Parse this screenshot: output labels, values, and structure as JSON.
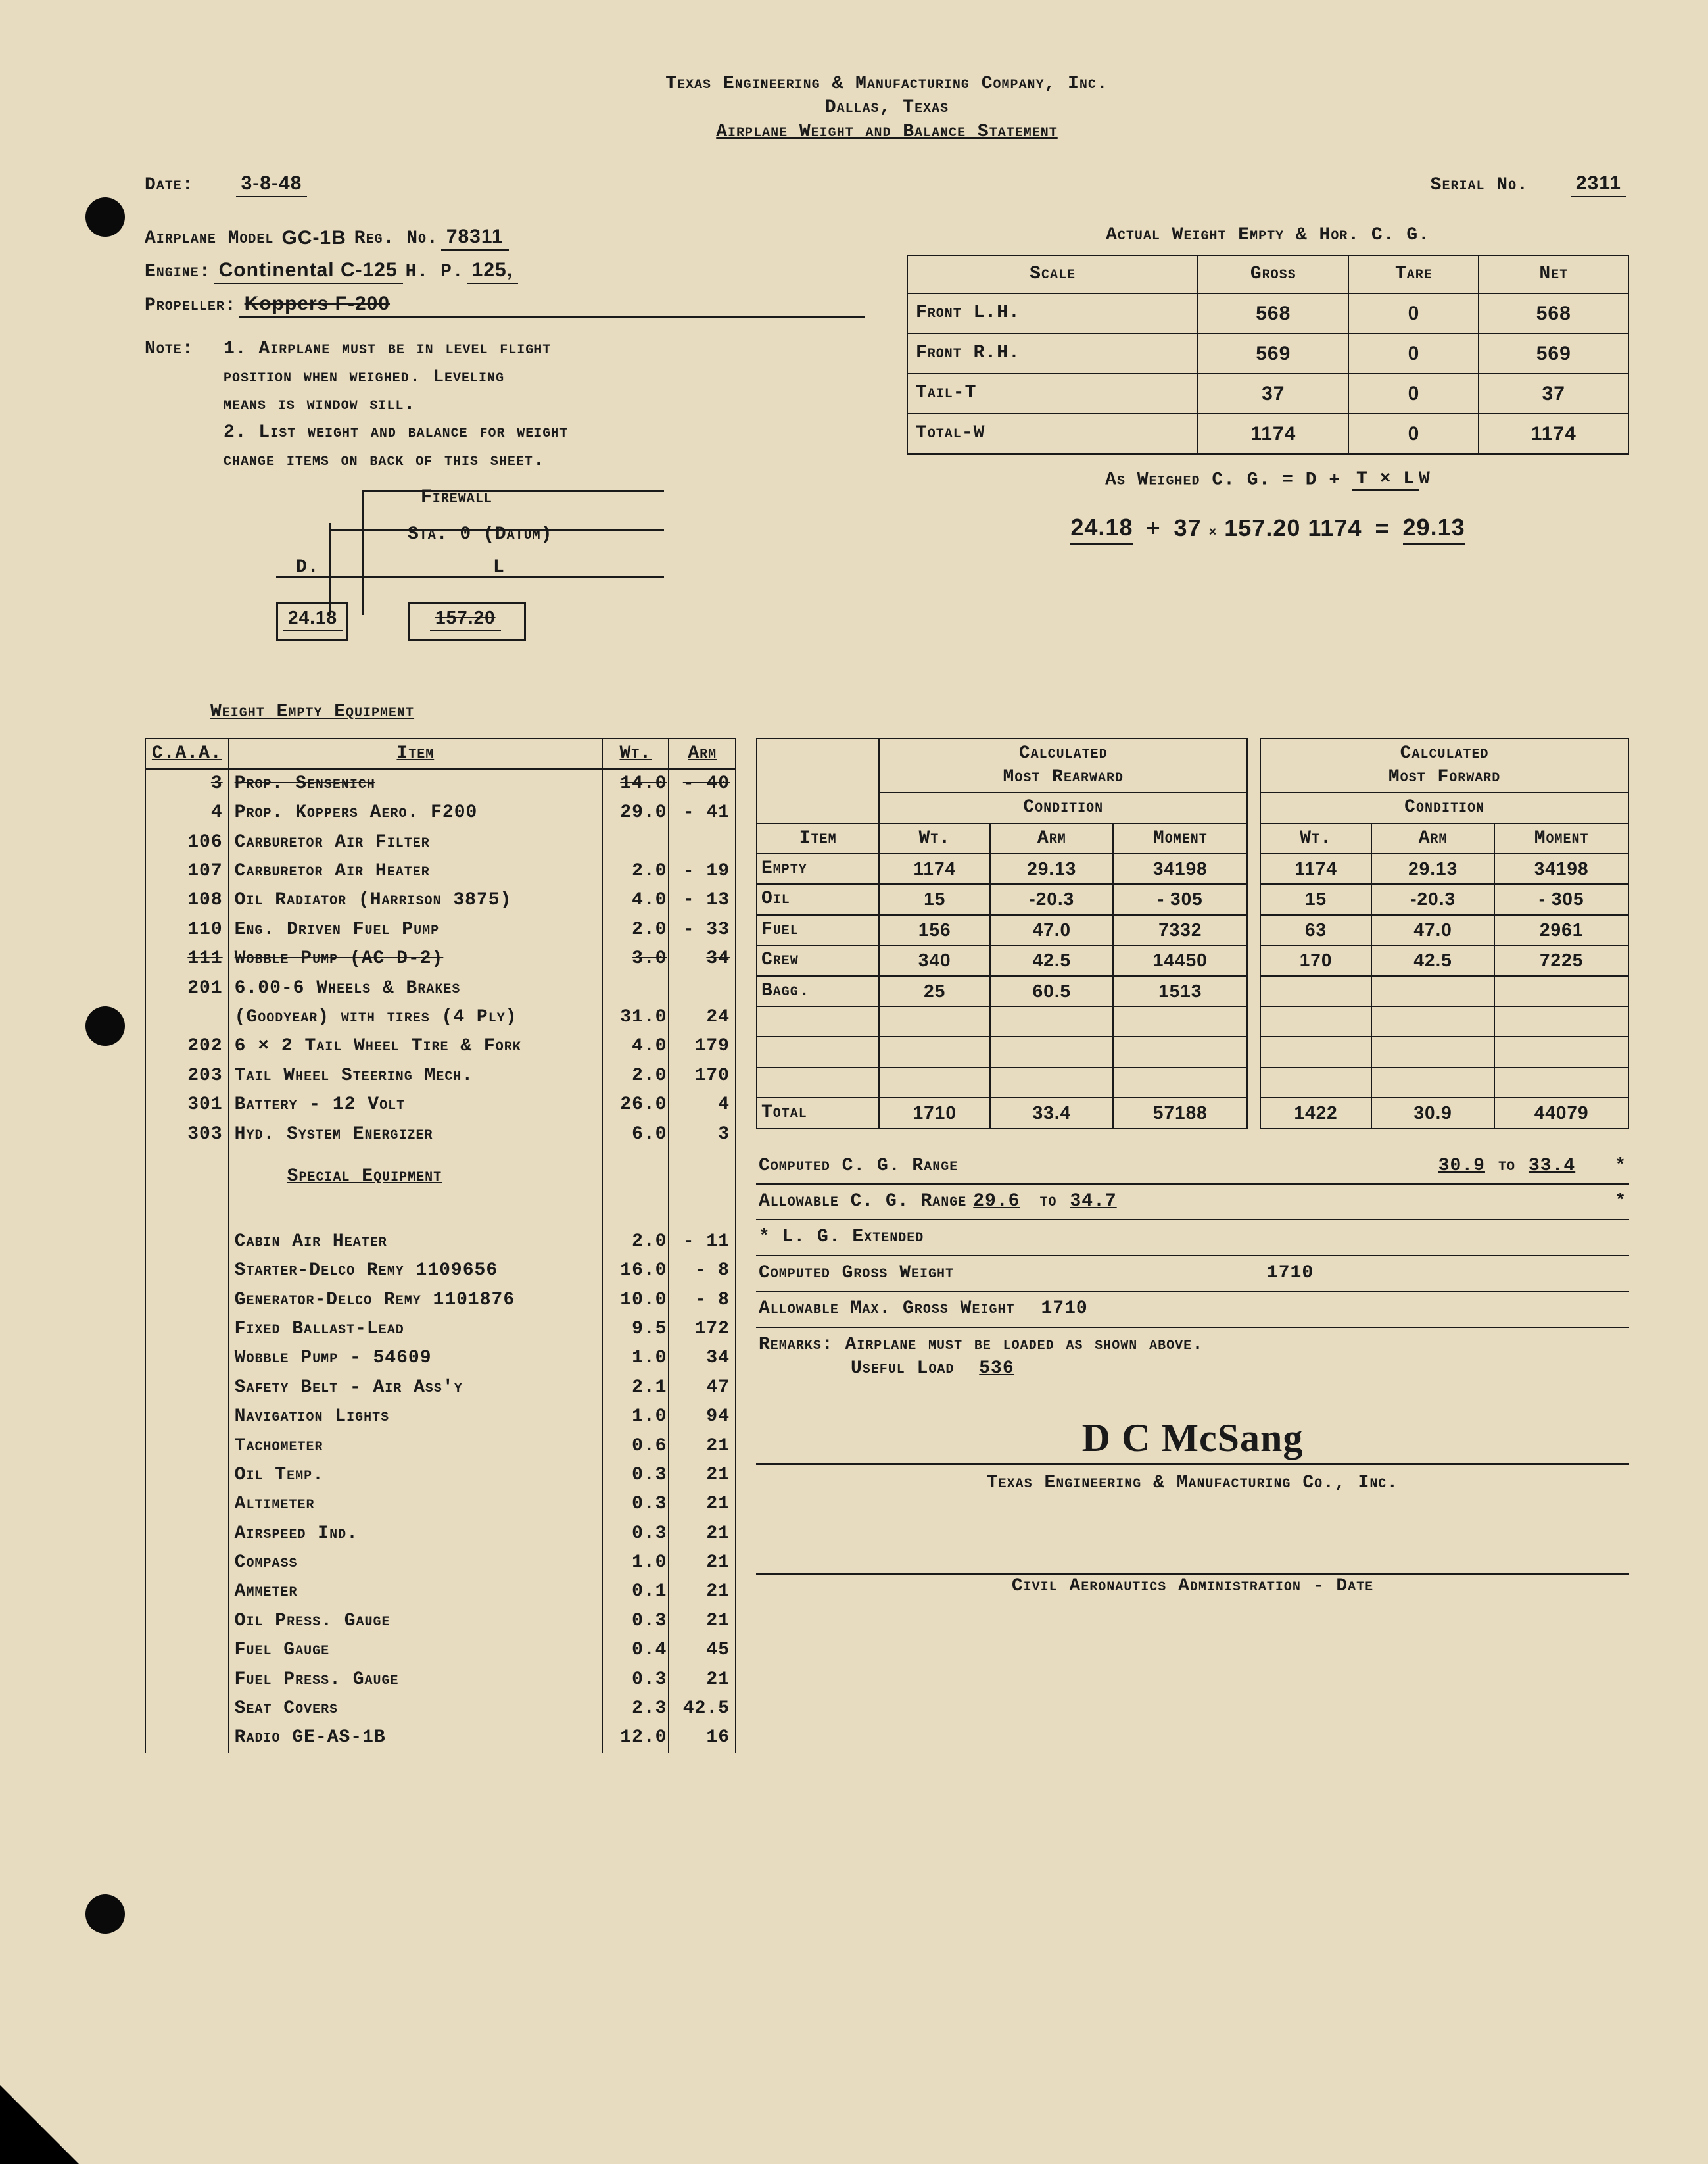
{
  "header": {
    "company": "Texas Engineering & Manufacturing Company, Inc.",
    "city": "Dallas, Texas",
    "title": "Airplane Weight and Balance Statement"
  },
  "meta": {
    "date_label": "Date:",
    "date": "3-8-48",
    "serial_label": "Serial No.",
    "serial": "2311",
    "model_label": "Airplane Model",
    "model": "GC-1B",
    "reg_label": "Reg. No.",
    "reg": "78311",
    "engine_label": "Engine:",
    "engine": "Continental C-125",
    "hp_label": "H. P.",
    "hp": "125,",
    "prop_label": "Propeller:",
    "prop_strike": "Koppers F-200"
  },
  "notes": {
    "label": "Note:",
    "n1a": "1. Airplane must be in level flight",
    "n1b": "position when weighed. Leveling",
    "n1c": "means is window sill.",
    "n2a": "2. List weight and balance for weight",
    "n2b": "change items on back of this sheet."
  },
  "diagram": {
    "firewall": "Firewall",
    "datum": "Sta. 0 (Datum)",
    "d_label": "D.",
    "d_val": "24.18",
    "l_label": "L",
    "l_val": "157.20"
  },
  "actual_weight": {
    "title": "Actual Weight Empty & Hor. C. G.",
    "cols": [
      "Scale",
      "Gross",
      "Tare",
      "Net"
    ],
    "rows": [
      {
        "label": "Front L.H.",
        "gross": "568",
        "tare": "0",
        "net": "568"
      },
      {
        "label": "Front R.H.",
        "gross": "569",
        "tare": "0",
        "net": "569"
      },
      {
        "label": "Tail-T",
        "gross": "37",
        "tare": "0",
        "net": "37"
      },
      {
        "label": "Total-W",
        "gross": "1174",
        "tare": "0",
        "net": "1174"
      }
    ],
    "formula_label": "As Weighed C. G. = D +",
    "formula_top": "T × L",
    "formula_bot": "W",
    "calc_d": "24.18",
    "calc_t": "37",
    "calc_l": "157.20",
    "calc_w": "1174",
    "calc_result": "29.13"
  },
  "equip": {
    "header": "Weight Empty Equipment",
    "cols": {
      "caa": "C.A.A.",
      "item": "Item",
      "wt": "Wt.",
      "arm": "Arm"
    },
    "rows": [
      {
        "caa": "3",
        "item": "Prop. Sensenich",
        "wt": "14.0",
        "arm": "- 40",
        "strike": true
      },
      {
        "caa": "4",
        "item": "Prop. Koppers Aero. F200",
        "wt": "29.0",
        "arm": "- 41"
      },
      {
        "caa": "106",
        "item": "Carburetor Air Filter",
        "wt": "",
        "arm": ""
      },
      {
        "caa": "107",
        "item": "Carburetor Air Heater",
        "wt": "2.0",
        "arm": "- 19"
      },
      {
        "caa": "108",
        "item": "Oil Radiator (Harrison 3875)",
        "wt": "4.0",
        "arm": "- 13"
      },
      {
        "caa": "110",
        "item": "Eng. Driven Fuel Pump",
        "wt": "2.0",
        "arm": "- 33"
      },
      {
        "caa": "111",
        "item": "Wobble Pump (AC D-2)",
        "wt": "3.0",
        "arm": "34",
        "strike": true
      },
      {
        "caa": "201",
        "item": "6.00-6 Wheels & Brakes",
        "wt": "",
        "arm": ""
      },
      {
        "caa": "",
        "item": "(Goodyear) with tires (4 Ply)",
        "wt": "31.0",
        "arm": "24"
      },
      {
        "caa": "202",
        "item": "6 × 2 Tail Wheel Tire & Fork",
        "wt": "4.0",
        "arm": "179"
      },
      {
        "caa": "203",
        "item": "Tail Wheel Steering Mech.",
        "wt": "2.0",
        "arm": "170"
      },
      {
        "caa": "301",
        "item": "Battery - 12 Volt",
        "wt": "26.0",
        "arm": "4"
      },
      {
        "caa": "303",
        "item": "Hyd. System Energizer",
        "wt": "6.0",
        "arm": "3"
      }
    ],
    "special_header": "Special Equipment",
    "special": [
      {
        "item": "Cabin Air Heater",
        "wt": "2.0",
        "arm": "- 11"
      },
      {
        "item": "Starter-Delco Remy 1109656",
        "wt": "16.0",
        "arm": "- 8"
      },
      {
        "item": "Generator-Delco Remy 1101876",
        "wt": "10.0",
        "arm": "- 8"
      },
      {
        "item": "Fixed Ballast-Lead",
        "wt": "9.5",
        "arm": "172"
      },
      {
        "item": "Wobble Pump - 54609",
        "wt": "1.0",
        "arm": "34"
      },
      {
        "item": "Safety Belt - Air Ass'y",
        "wt": "2.1",
        "arm": "47"
      },
      {
        "item": "Navigation Lights",
        "wt": "1.0",
        "arm": "94"
      },
      {
        "item": "Tachometer",
        "wt": "0.6",
        "arm": "21"
      },
      {
        "item": "Oil Temp.",
        "wt": "0.3",
        "arm": "21"
      },
      {
        "item": "Altimeter",
        "wt": "0.3",
        "arm": "21"
      },
      {
        "item": "Airspeed Ind.",
        "wt": "0.3",
        "arm": "21"
      },
      {
        "item": "Compass",
        "wt": "1.0",
        "arm": "21"
      },
      {
        "item": "Ammeter",
        "wt": "0.1",
        "arm": "21"
      },
      {
        "item": "Oil Press. Gauge",
        "wt": "0.3",
        "arm": "21"
      },
      {
        "item": "Fuel Gauge",
        "wt": "0.4",
        "arm": "45"
      },
      {
        "item": "Fuel Press. Gauge",
        "wt": "0.3",
        "arm": "21"
      },
      {
        "item": "Seat Covers",
        "wt": "2.3",
        "arm": "42.5"
      },
      {
        "item": "Radio GE-AS-1B",
        "wt": "12.0",
        "arm": "16"
      }
    ]
  },
  "cond": {
    "rear_title_a": "Calculated",
    "rear_title_b": "Most Rearward",
    "fwd_title_a": "Calculated",
    "fwd_title_b": "Most Forward",
    "cond_label": "Condition",
    "cols": [
      "Item",
      "Wt.",
      "Arm",
      "Moment",
      "Wt.",
      "Arm",
      "Moment"
    ],
    "rows": [
      {
        "item": "Empty",
        "rw": "1174",
        "ra": "29.13",
        "rm": "34198",
        "fw": "1174",
        "fa": "29.13",
        "fm": "34198"
      },
      {
        "item": "Oil",
        "rw": "15",
        "ra": "-20.3",
        "rm": "- 305",
        "fw": "15",
        "fa": "-20.3",
        "fm": "- 305"
      },
      {
        "item": "Fuel",
        "rw": "156",
        "ra": "47.0",
        "rm": "7332",
        "fw": "63",
        "fa": "47.0",
        "fm": "2961"
      },
      {
        "item": "Crew",
        "rw": "340",
        "ra": "42.5",
        "rm": "14450",
        "fw": "170",
        "fa": "42.5",
        "fm": "7225"
      },
      {
        "item": "Bagg.",
        "rw": "25",
        "ra": "60.5",
        "rm": "1513",
        "fw": "",
        "fa": "",
        "fm": ""
      },
      {
        "item": "",
        "rw": "",
        "ra": "",
        "rm": "",
        "fw": "",
        "fa": "",
        "fm": ""
      },
      {
        "item": "",
        "rw": "",
        "ra": "",
        "rm": "",
        "fw": "",
        "fa": "",
        "fm": ""
      },
      {
        "item": "",
        "rw": "",
        "ra": "",
        "rm": "",
        "fw": "",
        "fa": "",
        "fm": ""
      }
    ],
    "total_label": "Total",
    "total": {
      "rw": "1710",
      "ra": "33.4",
      "rm": "57188",
      "fw": "1422",
      "fa": "30.9",
      "fm": "44079"
    }
  },
  "summary": {
    "l1a": "Computed C. G. Range",
    "l1b": "30.9",
    "l1c": "to",
    "l1d": "33.4",
    "l1e": "*",
    "l2a": "Allowable C. G. Range",
    "l2b": "29.6",
    "l2c": "to",
    "l2d": "34.7",
    "l2e": "*",
    "l3": "* L. G. Extended",
    "l4a": "Computed Gross Weight",
    "l4b": "1710",
    "l5a": "Allowable Max. Gross Weight",
    "l5b": "1710",
    "remarks_label": "Remarks:",
    "remarks_a": "Airplane must be loaded as shown above.",
    "remarks_b": "Useful Load",
    "remarks_c": "536",
    "signature": "D C McSang",
    "sig_company": "Texas Engineering & Manufacturing Co., Inc.",
    "footer": "Civil Aeronautics Administration - Date"
  }
}
